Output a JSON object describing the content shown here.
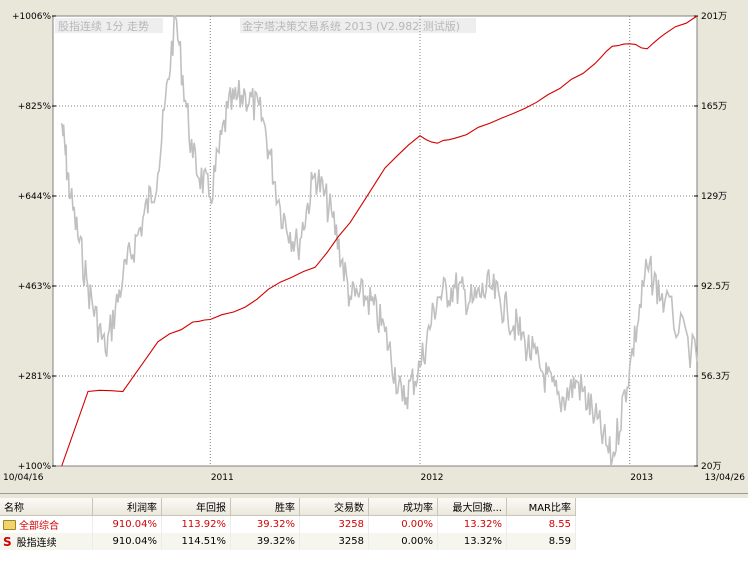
{
  "chart": {
    "title": "金字塔决策交易系统 2013 (V2.982 测试版)",
    "legend_label": "股指连续 1分 走势",
    "left_axis_labels": [
      "+1006%",
      "+825%",
      "+644%",
      "+463%",
      "+281%",
      "+100%"
    ],
    "right_axis_labels": [
      "201万",
      "165万",
      "129万",
      "92.5万",
      "56.3万",
      "20万"
    ],
    "x_axis_labels": [
      "10/04/16",
      "2011",
      "2012",
      "2013",
      "13/04/26"
    ],
    "colors": {
      "equity_line": "#d40000",
      "price_line": "#c0c0c0",
      "grid": "#808080",
      "plot_bg": "#ffffff"
    }
  },
  "chart_data": {
    "type": "line",
    "y_left_range": [
      100,
      1006
    ],
    "y_left_unit": "%",
    "y_right_range": [
      "20万",
      "201万"
    ],
    "grid": true,
    "series": [
      {
        "name": "股指连续",
        "axis": "left",
        "points": [
          [
            "10/04/16",
            790
          ],
          [
            "2010-05",
            640
          ],
          [
            "2010-06",
            460
          ],
          [
            "2010-07",
            330
          ],
          [
            "2010-08",
            480
          ],
          [
            "2010-09",
            580
          ],
          [
            "2010-10",
            690
          ],
          [
            "2010-11",
            1006
          ],
          [
            "2010-12",
            720
          ],
          [
            "2011-01",
            640
          ],
          [
            "2011-02",
            820
          ],
          [
            "2011-03",
            850
          ],
          [
            "2011-04",
            800
          ],
          [
            "2011-05",
            620
          ],
          [
            "2011-06",
            540
          ],
          [
            "2011-07",
            690
          ],
          [
            "2011-08",
            600
          ],
          [
            "2011-09",
            440
          ],
          [
            "2011-10",
            440
          ],
          [
            "2011-11",
            370
          ],
          [
            "2011-12",
            230
          ],
          [
            "2012-01",
            300
          ],
          [
            "2012-02",
            440
          ],
          [
            "2012-03",
            460
          ],
          [
            "2012-04",
            430
          ],
          [
            "2012-05",
            460
          ],
          [
            "2012-06",
            410
          ],
          [
            "2012-07",
            350
          ],
          [
            "2012-08",
            290
          ],
          [
            "2012-09",
            230
          ],
          [
            "2012-10",
            270
          ],
          [
            "2012-11",
            200
          ],
          [
            "2012-12",
            110
          ],
          [
            "2013-01",
            300
          ],
          [
            "2013-02",
            500
          ],
          [
            "2013-03",
            430
          ],
          [
            "13/04/26",
            310
          ]
        ]
      },
      {
        "axis": "left",
        "points": [
          [
            "10/04/16",
            100
          ],
          [
            "2010-06",
            250
          ],
          [
            "2010-08",
            250
          ],
          [
            "2010-10",
            350
          ],
          [
            "2010-12",
            390
          ],
          [
            "2011-01",
            395
          ],
          [
            "2011-03",
            420
          ],
          [
            "2011-05",
            470
          ],
          [
            "2011-07",
            500
          ],
          [
            "2011-09",
            590
          ],
          [
            "2011-11",
            700
          ],
          [
            "2012-01",
            765
          ],
          [
            "2012-02",
            750
          ],
          [
            "2012-03",
            760
          ],
          [
            "2012-05",
            790
          ],
          [
            "2012-07",
            820
          ],
          [
            "2012-09",
            860
          ],
          [
            "2012-11",
            910
          ],
          [
            "2012-12",
            945
          ],
          [
            "2013-01",
            950
          ],
          [
            "2013-02",
            940
          ],
          [
            "2013-03",
            970
          ],
          [
            "13/04/26",
            1006
          ]
        ]
      }
    ]
  },
  "table": {
    "headers": [
      "名称",
      "利润率",
      "年回报",
      "胜率",
      "交易数",
      "成功率",
      "最大回撤...",
      "MAR比率"
    ],
    "rows": [
      {
        "name": "全部综合",
        "cells": [
          "910.04%",
          "113.92%",
          "39.32%",
          "3258",
          "0.00%",
          "13.32%",
          "8.55"
        ]
      },
      {
        "name": "股指连续",
        "cells": [
          "910.04%",
          "114.51%",
          "39.32%",
          "3258",
          "0.00%",
          "13.32%",
          "8.59"
        ]
      }
    ],
    "row_icons": [
      "folder-icon",
      "s-icon"
    ],
    "s_icon_text": "S"
  }
}
